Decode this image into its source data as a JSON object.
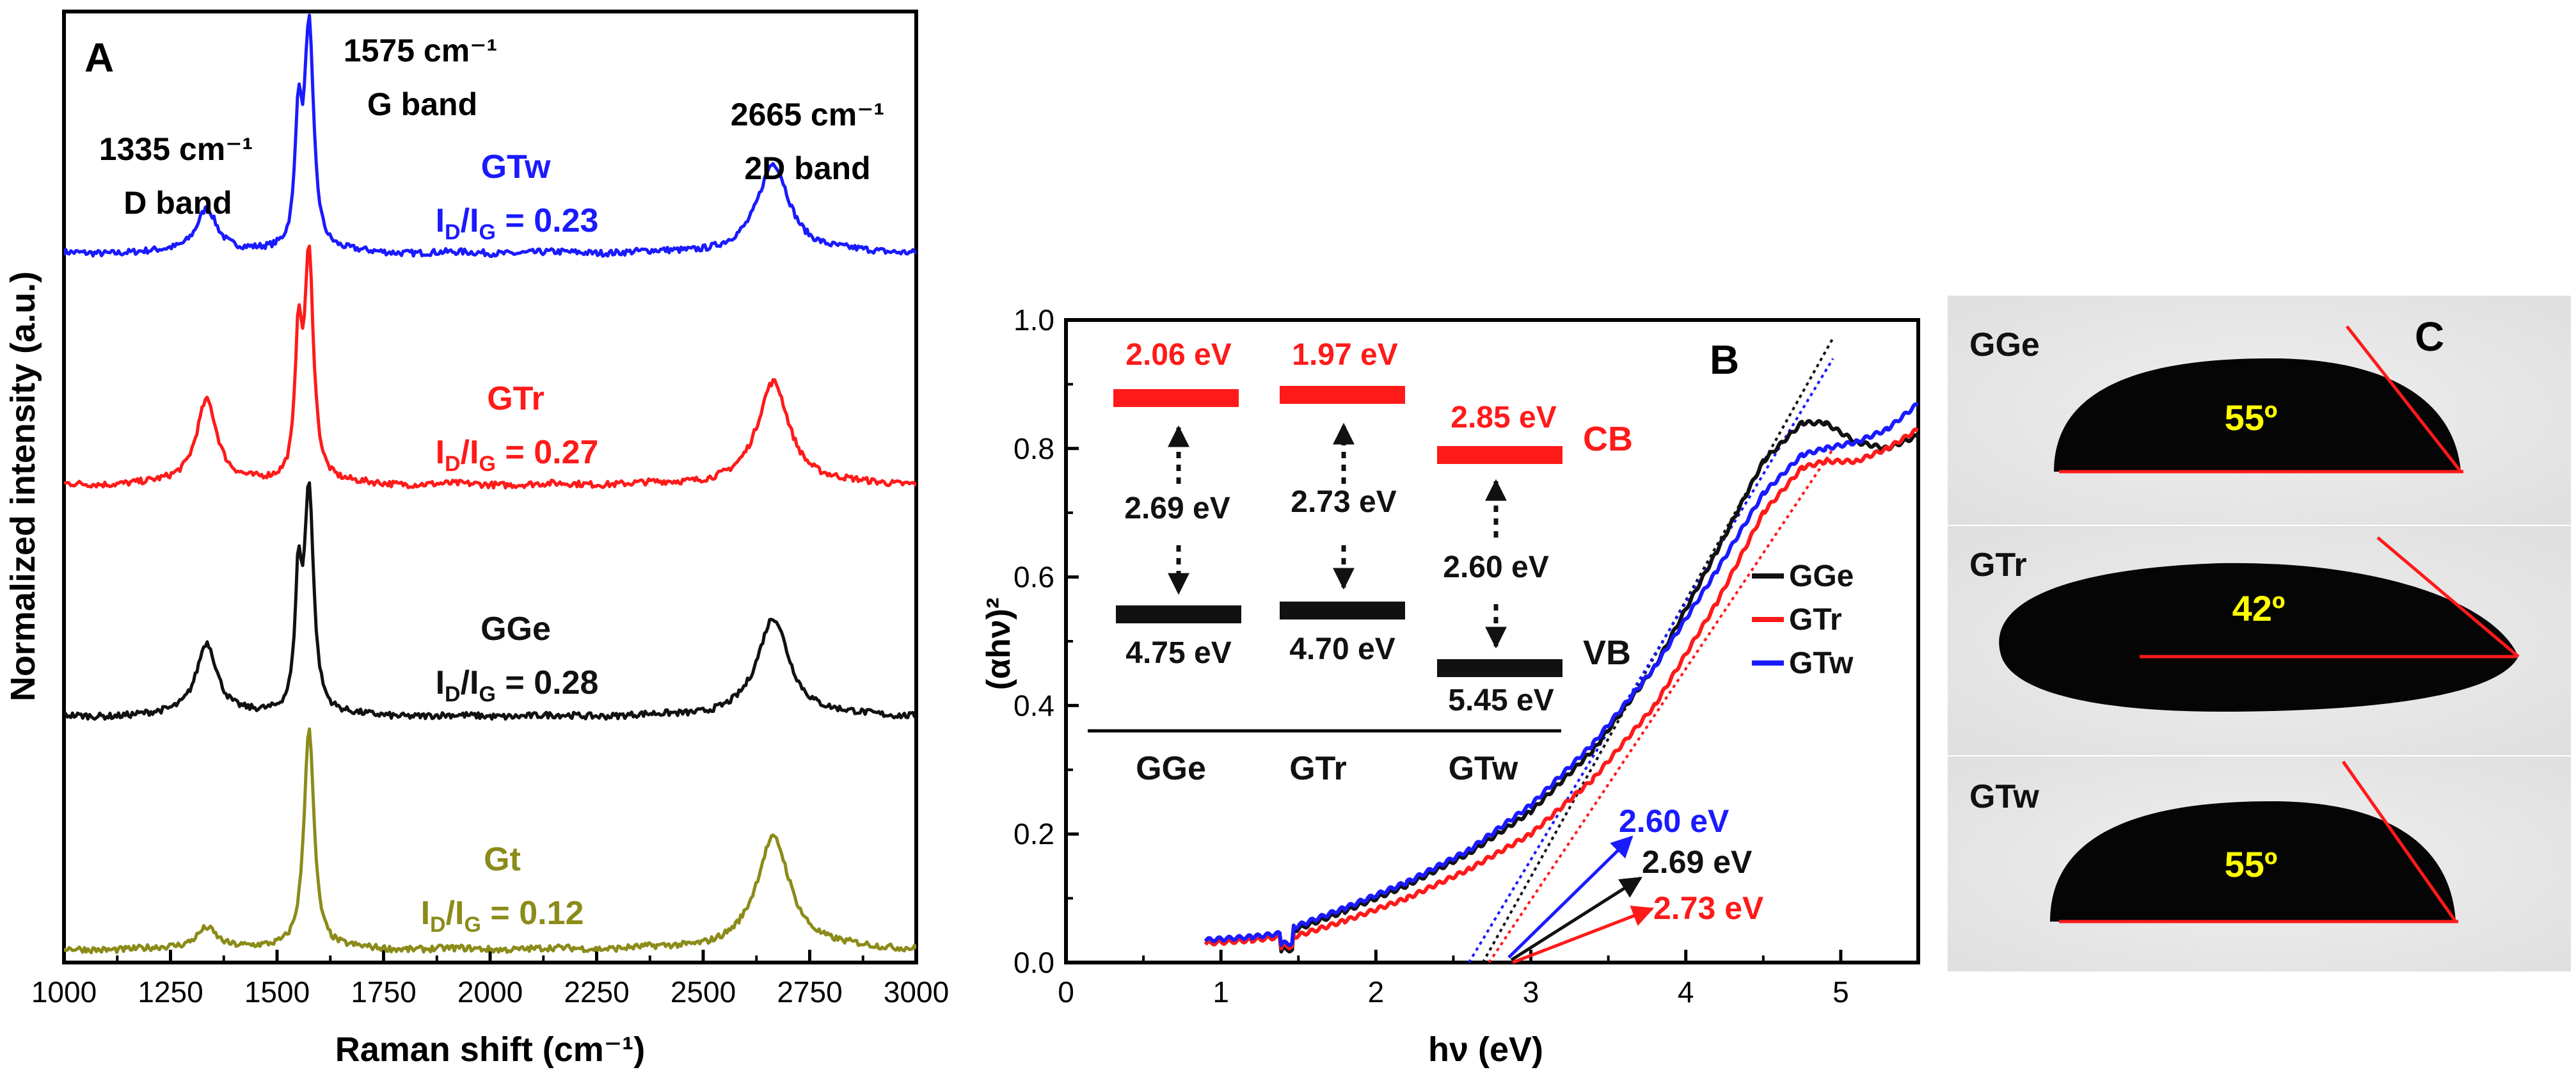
{
  "panels": {
    "A": {
      "letter": "A",
      "chart_data": {
        "type": "line",
        "title": "",
        "xlabel": "Raman shift (cm⁻¹)",
        "ylabel": "Normalized intensity (a.u.)",
        "xlim": [
          1000,
          3000
        ],
        "x_ticks": [
          "1000",
          "1250",
          "1500",
          "1750",
          "2000",
          "2250",
          "2500",
          "2750",
          "3000"
        ],
        "offsets": {
          "Gt": 0,
          "GGe": 1,
          "GTr": 2,
          "GTw": 3
        },
        "series": [
          {
            "name": "GTw",
            "color": "#1a1aff",
            "id_ig": "0.23",
            "peaks": [
              [
                1335,
                0.2,
                30
              ],
              [
                1550,
                0.55,
                9
              ],
              [
                1575,
                1.0,
                13
              ],
              [
                2665,
                0.4,
                45
              ]
            ]
          },
          {
            "name": "GTr",
            "color": "#ff1a1a",
            "id_ig": "0.27",
            "peaks": [
              [
                1335,
                0.38,
                30
              ],
              [
                1550,
                0.6,
                9
              ],
              [
                1575,
                1.0,
                13
              ],
              [
                2665,
                0.46,
                45
              ]
            ]
          },
          {
            "name": "GGe",
            "color": "#111111",
            "id_ig": "0.28",
            "peaks": [
              [
                1335,
                0.33,
                30
              ],
              [
                1550,
                0.55,
                9
              ],
              [
                1575,
                1.0,
                13
              ],
              [
                2665,
                0.44,
                45
              ]
            ]
          },
          {
            "name": "Gt",
            "color": "#8b8b1a",
            "id_ig": "0.12",
            "peaks": [
              [
                1335,
                0.1,
                30
              ],
              [
                1575,
                1.0,
                14
              ],
              [
                2665,
                0.5,
                48
              ]
            ]
          }
        ],
        "annotations": {
          "d_band": {
            "line1": "1335 cm⁻¹",
            "line2": "D band"
          },
          "g_band": {
            "line1": "1575 cm⁻¹",
            "line2": "G band"
          },
          "twod_band": {
            "line1": "2665 cm⁻¹",
            "line2": "2D band"
          }
        },
        "ratio_prefix_i": "I",
        "ratio_sub_d": "D",
        "ratio_slash": "/",
        "ratio_sub_g": "G",
        "ratio_eq": " = "
      }
    },
    "B": {
      "letter": "B",
      "chart_data": {
        "type": "line",
        "title": "",
        "xlabel": "hν (eV)",
        "ylabel": "(αhν)²",
        "xlim": [
          0,
          5.5
        ],
        "ylim": [
          0,
          1.0
        ],
        "x_ticks": [
          "0",
          "1",
          "2",
          "3",
          "4",
          "5"
        ],
        "y_ticks": [
          "0.0",
          "0.2",
          "0.4",
          "0.6",
          "0.8",
          "1.0"
        ],
        "legend": {
          "position": "right",
          "entries": [
            "GGe",
            "GTr",
            "GTw"
          ]
        },
        "series": [
          {
            "name": "GGe",
            "color": "#111111",
            "points": [
              [
                0.9,
                0.03
              ],
              [
                1.2,
                0.035
              ],
              [
                1.38,
                0.04
              ],
              [
                1.39,
                0.02
              ],
              [
                1.46,
                0.02
              ],
              [
                1.47,
                0.05
              ],
              [
                1.8,
                0.08
              ],
              [
                2.2,
                0.12
              ],
              [
                2.6,
                0.17
              ],
              [
                3.0,
                0.235
              ],
              [
                3.4,
                0.33
              ],
              [
                3.8,
                0.46
              ],
              [
                4.2,
                0.64
              ],
              [
                4.5,
                0.78
              ],
              [
                4.75,
                0.84
              ],
              [
                4.9,
                0.84
              ],
              [
                5.1,
                0.81
              ],
              [
                5.3,
                0.8
              ],
              [
                5.5,
                0.82
              ]
            ]
          },
          {
            "name": "GTr",
            "color": "#ff1a1a",
            "points": [
              [
                0.9,
                0.03
              ],
              [
                1.2,
                0.035
              ],
              [
                1.38,
                0.04
              ],
              [
                1.39,
                0.025
              ],
              [
                1.46,
                0.025
              ],
              [
                1.47,
                0.04
              ],
              [
                1.8,
                0.065
              ],
              [
                2.2,
                0.1
              ],
              [
                2.6,
                0.145
              ],
              [
                3.0,
                0.2
              ],
              [
                3.4,
                0.285
              ],
              [
                3.8,
                0.4
              ],
              [
                4.2,
                0.56
              ],
              [
                4.5,
                0.7
              ],
              [
                4.75,
                0.77
              ],
              [
                4.9,
                0.78
              ],
              [
                5.1,
                0.78
              ],
              [
                5.3,
                0.8
              ],
              [
                5.5,
                0.83
              ]
            ]
          },
          {
            "name": "GTw",
            "color": "#1a1aff",
            "points": [
              [
                0.9,
                0.035
              ],
              [
                1.2,
                0.04
              ],
              [
                1.38,
                0.045
              ],
              [
                1.39,
                0.03
              ],
              [
                1.46,
                0.03
              ],
              [
                1.47,
                0.055
              ],
              [
                1.8,
                0.085
              ],
              [
                2.2,
                0.125
              ],
              [
                2.6,
                0.175
              ],
              [
                3.0,
                0.245
              ],
              [
                3.4,
                0.34
              ],
              [
                3.8,
                0.46
              ],
              [
                4.2,
                0.61
              ],
              [
                4.5,
                0.73
              ],
              [
                4.75,
                0.79
              ],
              [
                4.9,
                0.8
              ],
              [
                5.1,
                0.81
              ],
              [
                5.3,
                0.83
              ],
              [
                5.5,
                0.87
              ]
            ]
          }
        ],
        "tangents": [
          {
            "name": "GGe",
            "color": "#111111",
            "x0": 2.69,
            "slope": 0.43
          },
          {
            "name": "GTr",
            "color": "#ff1a1a",
            "x0": 2.73,
            "slope": 0.36
          },
          {
            "name": "GTw",
            "color": "#1a1aff",
            "x0": 2.6,
            "slope": 0.4
          }
        ],
        "bandgap_labels": [
          {
            "text": "2.60 eV",
            "color": "#1a1aff"
          },
          {
            "text": "2.69 eV",
            "color": "#111111"
          },
          {
            "text": "2.73 eV",
            "color": "#ff1a1a"
          }
        ],
        "band_diagram": {
          "columns": [
            {
              "name": "GGe",
              "cb": "2.06 eV",
              "gap": "2.69 eV",
              "vb": "4.75 eV"
            },
            {
              "name": "GTr",
              "cb": "1.97 eV",
              "gap": "2.73 eV",
              "vb": "4.70 eV"
            },
            {
              "name": "GTw",
              "cb": "2.85 eV",
              "gap": "2.60 eV",
              "vb": "5.45 eV"
            }
          ],
          "cb_label": "CB",
          "vb_label": "VB",
          "cb_color": "#ff1a1a",
          "vb_color": "#111111"
        }
      }
    },
    "C": {
      "letter": "C",
      "drops": [
        {
          "name": "GGe",
          "angle": "55º"
        },
        {
          "name": "GTr",
          "angle": "42º"
        },
        {
          "name": "GTw",
          "angle": "55º"
        }
      ],
      "angle_color": "#ffff00",
      "line_color": "#ff1a1a"
    }
  }
}
